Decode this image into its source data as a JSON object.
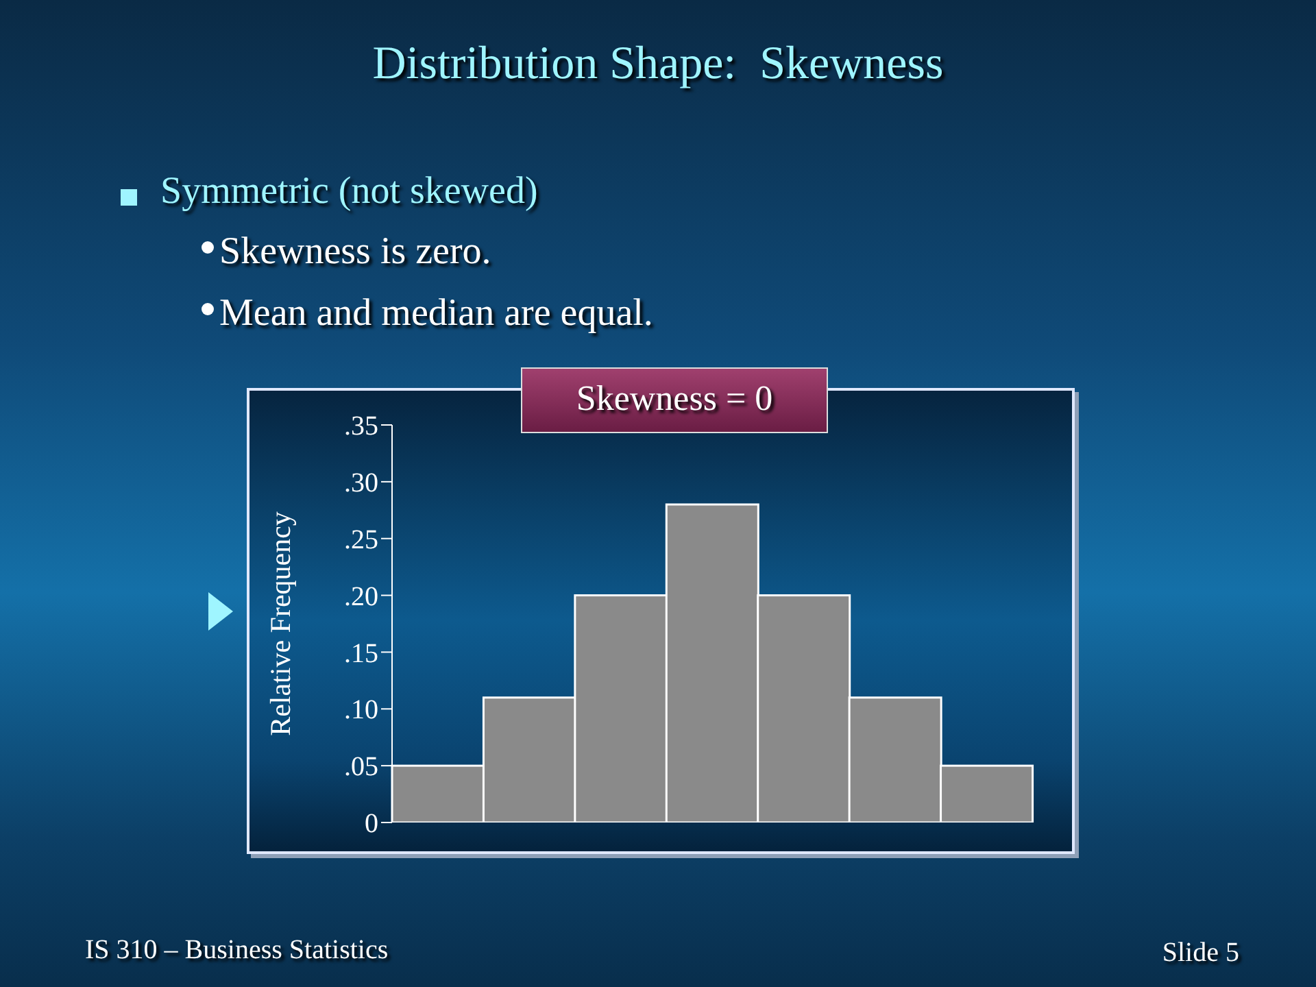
{
  "chart_data": {
    "type": "bar",
    "title": "Distribution Shape:  Skewness",
    "subtitle": "Symmetric (not skewed)",
    "annotations": [
      "Skewness is zero.",
      "Mean and median are equal.",
      "Skewness = 0",
      "IS 310 – Business Statistics",
      "Slide 5"
    ],
    "ylabel": "Relative Frequency",
    "categories": [
      null,
      null,
      null,
      null,
      null,
      null,
      null
    ],
    "values": [
      0.05,
      0.11,
      0.2,
      0.28,
      0.2,
      0.11,
      0.05
    ],
    "color": "#8a8a8a",
    "ylim": [
      0,
      0.35
    ],
    "yticks": [
      {
        "value": 0,
        "label": "0"
      },
      {
        "value": 0.05,
        "label": ".05"
      },
      {
        "value": 0.1,
        "label": ".10"
      },
      {
        "value": 0.15,
        "label": ".15"
      },
      {
        "value": 0.2,
        "label": ".20"
      },
      {
        "value": 0.25,
        "label": ".25"
      },
      {
        "value": 0.3,
        "label": ".30"
      },
      {
        "value": 0.35,
        "label": ".35"
      }
    ],
    "grid": false,
    "legend": false
  }
}
